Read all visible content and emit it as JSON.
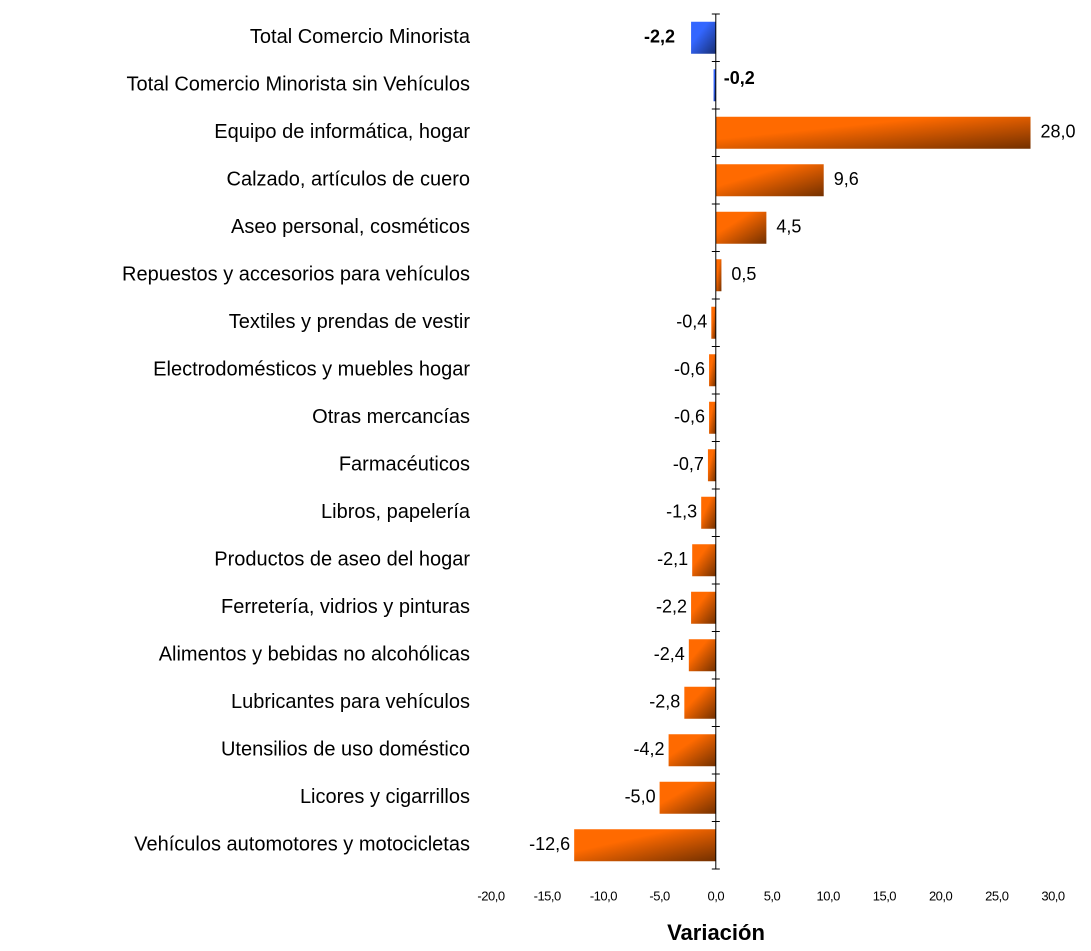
{
  "chart_data": {
    "type": "bar",
    "orientation": "horizontal",
    "x_label": "Variación",
    "categories": [
      "Total Comercio Minorista",
      "Total Comercio Minorista sin  Vehículos",
      "Equipo de informática, hogar",
      "Calzado, artículos de cuero",
      "Aseo personal, cosméticos",
      "Repuestos y accesorios para vehículos",
      "Textiles y prendas de vestir",
      "Electrodomésticos y muebles hogar",
      "Otras mercancías",
      "Farmacéuticos",
      "Libros, papelería",
      "Productos de aseo del  hogar",
      "Ferretería, vidrios y pinturas",
      "Alimentos  y bebidas no alcohólicas",
      "Lubricantes para vehículos",
      "Utensilios de uso doméstico",
      "Licores y cigarrillos",
      "Vehículos automotores y motocicletas"
    ],
    "values": [
      -2.2,
      -0.2,
      28.0,
      9.6,
      4.5,
      0.5,
      -0.4,
      -0.6,
      -0.6,
      -0.7,
      -1.3,
      -2.1,
      -2.2,
      -2.4,
      -2.8,
      -4.2,
      -5.0,
      -12.6
    ],
    "value_labels": [
      "-2,2",
      "-0,2",
      "28,0",
      "9,6",
      "4,5",
      "0,5",
      "-0,4",
      "-0,6",
      "-0,6",
      "-0,7",
      "-1,3",
      "-2,1",
      "-2,2",
      "-2,4",
      "-2,8",
      "-4,2",
      "-5,0",
      "-12,6"
    ],
    "colors": [
      "#3366ff",
      "#3366ff",
      "#ff6a00",
      "#ff6a00",
      "#ff6a00",
      "#ff6a00",
      "#ff6a00",
      "#ff6a00",
      "#ff6a00",
      "#ff6a00",
      "#ff6a00",
      "#ff6a00",
      "#ff6a00",
      "#ff6a00",
      "#ff6a00",
      "#ff6a00",
      "#ff6a00",
      "#ff6a00"
    ],
    "xlim": [
      -20,
      30
    ],
    "xticks": [
      {
        "value": -20,
        "label": "-20,0"
      },
      {
        "value": -15,
        "label": "-15,0"
      },
      {
        "value": -10,
        "label": "-10,0"
      },
      {
        "value": -5,
        "label": "-5,0"
      },
      {
        "value": 0,
        "label": "0,0"
      },
      {
        "value": 5,
        "label": "5,0"
      },
      {
        "value": 10,
        "label": "10,0"
      },
      {
        "value": 15,
        "label": "15,0"
      },
      {
        "value": 20,
        "label": "20,0"
      },
      {
        "value": 25,
        "label": "25,0"
      },
      {
        "value": 30,
        "label": "30,0"
      }
    ]
  }
}
